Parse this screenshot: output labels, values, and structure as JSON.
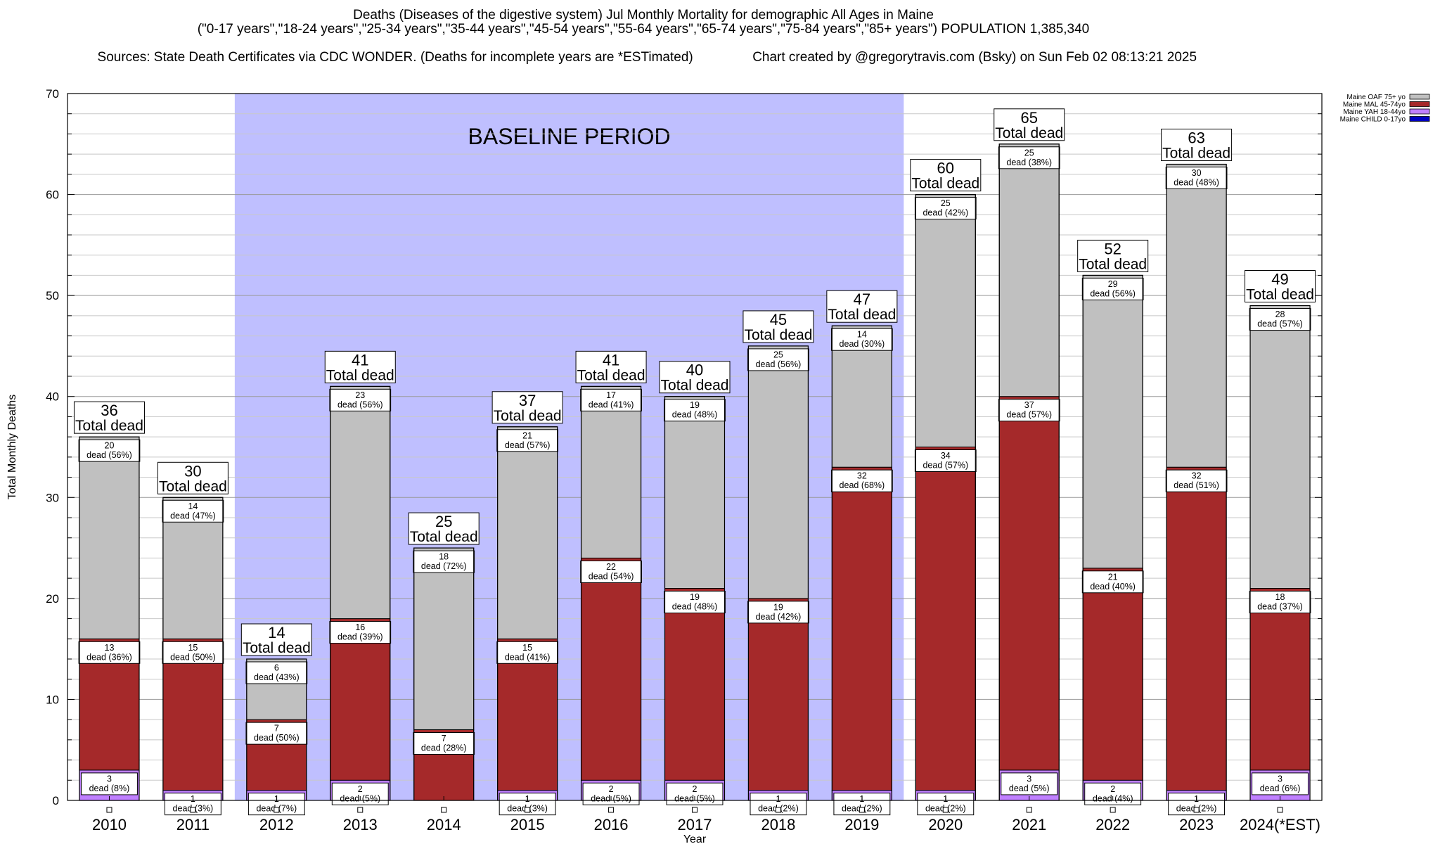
{
  "header": {
    "line1": "Deaths (Diseases of the digestive system) Jul Monthly Mortality for demographic All Ages in Maine",
    "line2": "(\"0-17 years\",\"18-24 years\",\"25-34 years\",\"35-44 years\",\"45-54 years\",\"55-64 years\",\"65-74 years\",\"75-84 years\",\"85+ years\") POPULATION 1,385,340",
    "line3_left": "Sources: State Death Certificates via CDC WONDER. (Deaths for incomplete years are *ESTimated)",
    "line3_right": "Chart created by @gregorytravis.com (Bsky) on Sun Feb 02 08:13:21 2025"
  },
  "chart_data": {
    "type": "bar",
    "stacked": true,
    "title": "Deaths (Diseases of the digestive system) Jul Monthly Mortality for demographic All Ages in Maine",
    "xlabel": "Year",
    "ylabel": "Total Monthly Deaths",
    "ylim": [
      0,
      70
    ],
    "yticks": [
      0,
      10,
      20,
      30,
      40,
      50,
      60,
      70
    ],
    "grid": true,
    "legend_position": "top-right",
    "categories": [
      "2010",
      "2011",
      "2012",
      "2013",
      "2014",
      "2015",
      "2016",
      "2017",
      "2018",
      "2019",
      "2020",
      "2021",
      "2022",
      "2023",
      "2024(*EST)"
    ],
    "series": [
      {
        "name": "Maine CHILD 0-17yo",
        "color": "#0000c0",
        "values": [
          0,
          0,
          0,
          0,
          0,
          0,
          0,
          0,
          0,
          0,
          0,
          0,
          0,
          0,
          0
        ]
      },
      {
        "name": "Maine YAH 18-44yo",
        "color": "#c080ff",
        "values": [
          3,
          1,
          1,
          2,
          0,
          1,
          2,
          2,
          1,
          1,
          1,
          3,
          2,
          1,
          3
        ],
        "labels": [
          "dead (8%)",
          "dead (3%)",
          "dead (7%)",
          "dead (5%)",
          "",
          "dead (3%)",
          "dead (5%)",
          "dead (5%)",
          "dead (2%)",
          "dead (2%)",
          "dead (2%)",
          "dead (5%)",
          "dead (4%)",
          "dead (2%)",
          "dead (6%)"
        ]
      },
      {
        "name": "Maine MAL 45-74yo",
        "color": "#a5292a",
        "values": [
          13,
          15,
          7,
          16,
          7,
          15,
          22,
          19,
          19,
          32,
          34,
          37,
          21,
          32,
          18
        ],
        "labels": [
          "dead (36%)",
          "dead (50%)",
          "dead (50%)",
          "dead (39%)",
          "dead (28%)",
          "dead (41%)",
          "dead (54%)",
          "dead (48%)",
          "dead (42%)",
          "dead (68%)",
          "dead (57%)",
          "dead (57%)",
          "dead (40%)",
          "dead (51%)",
          "dead (37%)"
        ]
      },
      {
        "name": "Maine OAF 75+ yo",
        "color": "#c0c0c0",
        "values": [
          20,
          14,
          6,
          23,
          18,
          21,
          17,
          19,
          25,
          14,
          25,
          25,
          29,
          30,
          28
        ],
        "labels": [
          "dead (56%)",
          "dead (47%)",
          "dead (43%)",
          "dead (56%)",
          "dead (72%)",
          "dead (57%)",
          "dead (41%)",
          "dead (48%)",
          "dead (56%)",
          "dead (30%)",
          "dead (42%)",
          "dead (38%)",
          "dead (56%)",
          "dead (48%)",
          "dead (57%)"
        ]
      }
    ],
    "totals": [
      36,
      30,
      14,
      41,
      25,
      37,
      41,
      40,
      45,
      47,
      60,
      65,
      52,
      63,
      49
    ],
    "total_label": "Total dead",
    "annotation": "BASELINE PERIOD",
    "baseline_range": [
      "2012",
      "2019"
    ],
    "baseline_color": "#bfbfff"
  }
}
